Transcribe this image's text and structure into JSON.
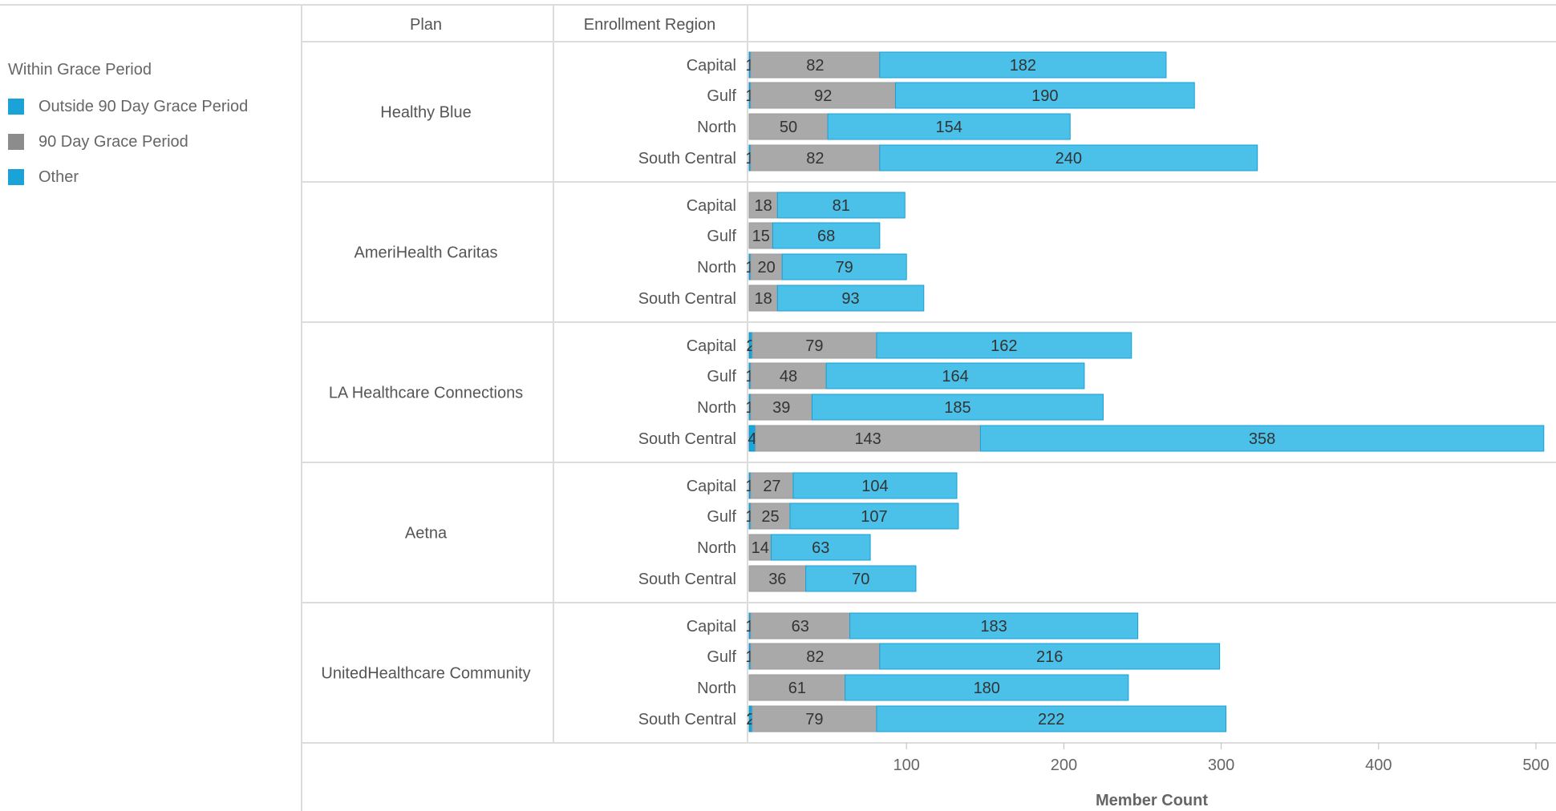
{
  "legend": {
    "title": "Within Grace Period",
    "items": [
      {
        "label": "Outside 90 Day Grace Period",
        "color": "#1ba3d8"
      },
      {
        "label": "90 Day Grace Period",
        "color": "#8c8c8c"
      },
      {
        "label": "Other",
        "color": "#1ba3d8"
      }
    ]
  },
  "headers": {
    "plan": "Plan",
    "region": "Enrollment Region"
  },
  "chart_data": {
    "type": "bar",
    "orientation": "horizontal",
    "stacked": true,
    "xlabel": "Member Count",
    "xlim": [
      0,
      510
    ],
    "xticks": [
      100,
      200,
      300,
      400,
      500
    ],
    "grid": false,
    "legend_position": "left",
    "colors": {
      "outside": "#19a6dc",
      "grace": "#a9a9a9",
      "other": "#4bc1e9"
    },
    "groups": [
      {
        "plan": "Healthy Blue",
        "rows": [
          {
            "region": "Capital",
            "outside": 1,
            "grace": 82,
            "other": 182
          },
          {
            "region": "Gulf",
            "outside": 1,
            "grace": 92,
            "other": 190
          },
          {
            "region": "North",
            "outside": 0,
            "grace": 50,
            "other": 154
          },
          {
            "region": "South Central",
            "outside": 1,
            "grace": 82,
            "other": 240
          }
        ]
      },
      {
        "plan": "AmeriHealth Caritas",
        "rows": [
          {
            "region": "Capital",
            "outside": 0,
            "grace": 18,
            "other": 81
          },
          {
            "region": "Gulf",
            "outside": 0,
            "grace": 15,
            "other": 68
          },
          {
            "region": "North",
            "outside": 1,
            "grace": 20,
            "other": 79
          },
          {
            "region": "South Central",
            "outside": 0,
            "grace": 18,
            "other": 93
          }
        ]
      },
      {
        "plan": "LA Healthcare Connections",
        "rows": [
          {
            "region": "Capital",
            "outside": 2,
            "grace": 79,
            "other": 162
          },
          {
            "region": "Gulf",
            "outside": 1,
            "grace": 48,
            "other": 164
          },
          {
            "region": "North",
            "outside": 1,
            "grace": 39,
            "other": 185
          },
          {
            "region": "South Central",
            "outside": 4,
            "grace": 143,
            "other": 358
          }
        ]
      },
      {
        "plan": "Aetna",
        "rows": [
          {
            "region": "Capital",
            "outside": 1,
            "grace": 27,
            "other": 104
          },
          {
            "region": "Gulf",
            "outside": 1,
            "grace": 25,
            "other": 107
          },
          {
            "region": "North",
            "outside": 0,
            "grace": 14,
            "other": 63
          },
          {
            "region": "South Central",
            "outside": 0,
            "grace": 36,
            "other": 70
          }
        ]
      },
      {
        "plan": "UnitedHealthcare Community",
        "rows": [
          {
            "region": "Capital",
            "outside": 1,
            "grace": 63,
            "other": 183
          },
          {
            "region": "Gulf",
            "outside": 1,
            "grace": 82,
            "other": 216
          },
          {
            "region": "North",
            "outside": 0,
            "grace": 61,
            "other": 180
          },
          {
            "region": "South Central",
            "outside": 2,
            "grace": 79,
            "other": 222
          }
        ]
      }
    ]
  }
}
